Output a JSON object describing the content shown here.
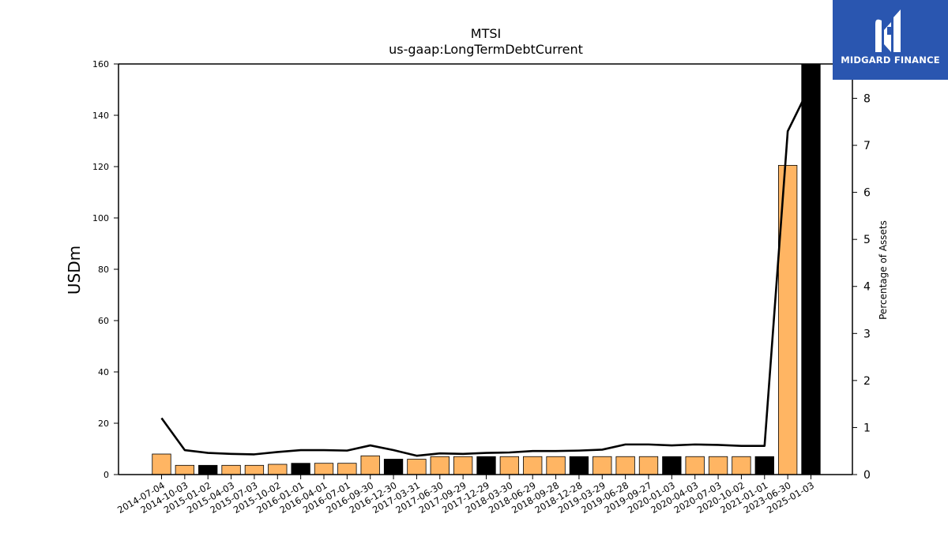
{
  "chart_data": {
    "type": "bar",
    "title": "MTSI",
    "subtitle": "us-gaap:LongTermDebtCurrent",
    "ylabel": "USDm",
    "y2label": "Percentage of Assets",
    "ylim": [
      0,
      160
    ],
    "y2lim": [
      0,
      8.73
    ],
    "yticks": [
      0,
      20,
      40,
      60,
      80,
      100,
      120,
      140,
      160
    ],
    "y2ticks": [
      0,
      1,
      2,
      3,
      4,
      5,
      6,
      7,
      8
    ],
    "categories": [
      "2014-07-04",
      "2014-10-03",
      "2015-01-02",
      "2015-04-03",
      "2015-07-03",
      "2015-10-02",
      "2016-01-01",
      "2016-04-01",
      "2016-07-01",
      "2016-09-30",
      "2016-12-30",
      "2017-03-31",
      "2017-06-30",
      "2017-09-29",
      "2017-12-29",
      "2018-03-30",
      "2018-06-29",
      "2018-09-28",
      "2018-12-28",
      "2019-03-29",
      "2019-06-28",
      "2019-09-27",
      "2020-01-03",
      "2020-04-03",
      "2020-07-03",
      "2020-10-02",
      "2021-01-01",
      "2023-06-30",
      "2025-01-03"
    ],
    "series": [
      {
        "type": "bar",
        "values": [
          8.0,
          3.6,
          3.6,
          3.6,
          3.6,
          4.0,
          4.4,
          4.4,
          4.4,
          7.3,
          6.0,
          6.0,
          7.0,
          7.0,
          7.0,
          7.0,
          7.0,
          7.0,
          7.0,
          7.0,
          7.0,
          7.0,
          7.0,
          7.0,
          7.0,
          7.0,
          7.0,
          120.5,
          161
        ],
        "bar_colors": [
          "#ffb563",
          "#ffb563",
          "#000000",
          "#ffb563",
          "#ffb563",
          "#ffb563",
          "#000000",
          "#ffb563",
          "#ffb563",
          "#ffb563",
          "#000000",
          "#ffb563",
          "#ffb563",
          "#ffb563",
          "#000000",
          "#ffb563",
          "#ffb563",
          "#ffb563",
          "#000000",
          "#ffb563",
          "#ffb563",
          "#ffb563",
          "#000000",
          "#ffb563",
          "#ffb563",
          "#ffb563",
          "#000000",
          "#ffb563",
          "#000000"
        ]
      },
      {
        "type": "line",
        "axis": "right",
        "color": "#000000",
        "values": [
          1.2,
          0.52,
          0.46,
          0.44,
          0.43,
          0.48,
          0.52,
          0.52,
          0.51,
          0.62,
          0.52,
          0.4,
          0.45,
          0.44,
          0.46,
          0.47,
          0.5,
          0.5,
          0.51,
          0.53,
          0.64,
          0.64,
          0.62,
          0.64,
          0.63,
          0.61,
          0.61,
          7.3,
          8.3
        ]
      }
    ],
    "grid": false,
    "legend": "none"
  },
  "logo": {
    "text": "MIDGARD FINANCE",
    "background": "#2a56b0"
  }
}
